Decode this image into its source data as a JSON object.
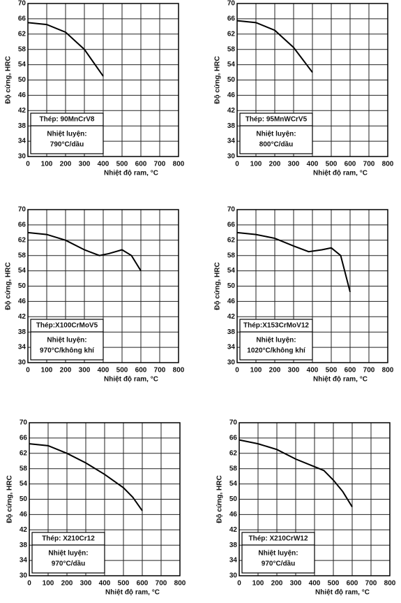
{
  "chart_data": [
    {
      "type": "line",
      "ylabel": "Độ cứng, HRC",
      "xlabel": "Nhiệt độ ram, °C",
      "annotations": [
        "Thép: 90MnCrV8",
        "Nhiệt luyện:",
        "790°C/dầu"
      ],
      "x": [
        0,
        100,
        200,
        300,
        400
      ],
      "values": [
        65,
        64.5,
        62.5,
        58,
        51
      ],
      "color": "#000000",
      "xlim": [
        0,
        800
      ],
      "ylim": [
        30,
        70
      ],
      "xticks": [
        0,
        100,
        200,
        300,
        400,
        500,
        600,
        700,
        800
      ],
      "yticks": [
        30,
        34,
        38,
        42,
        46,
        50,
        54,
        58,
        62,
        66,
        70
      ],
      "grid": true
    },
    {
      "type": "line",
      "ylabel": "Độ cứng, HRC",
      "xlabel": "Nhiệt độ ram, °C",
      "annotations": [
        "Thép: 95MnWCrV5",
        "Nhiệt luyện:",
        "800°C/dầu"
      ],
      "x": [
        0,
        100,
        200,
        300,
        400
      ],
      "values": [
        65.5,
        65,
        63,
        58.5,
        52
      ],
      "color": "#000000",
      "xlim": [
        0,
        800
      ],
      "ylim": [
        30,
        70
      ],
      "xticks": [
        0,
        100,
        200,
        300,
        400,
        500,
        600,
        700,
        800
      ],
      "yticks": [
        30,
        34,
        38,
        42,
        46,
        50,
        54,
        58,
        62,
        66,
        70
      ],
      "grid": true
    },
    {
      "type": "line",
      "ylabel": "Độ cứng, HRC",
      "xlabel": "Nhiệt độ ram, °C",
      "annotations": [
        "Thép:X100CrMoV5",
        "Nhiệt luyện:",
        "970°C/không khí"
      ],
      "x": [
        0,
        100,
        200,
        300,
        380,
        430,
        500,
        550,
        600
      ],
      "values": [
        64,
        63.5,
        62,
        59.5,
        58,
        58.5,
        59.5,
        58,
        54
      ],
      "color": "#000000",
      "xlim": [
        0,
        800
      ],
      "ylim": [
        30,
        70
      ],
      "xticks": [
        0,
        100,
        200,
        300,
        400,
        500,
        600,
        700,
        800
      ],
      "yticks": [
        30,
        34,
        38,
        42,
        46,
        50,
        54,
        58,
        62,
        66,
        70
      ],
      "grid": true
    },
    {
      "type": "line",
      "ylabel": "Độ cứng, HRC",
      "xlabel": "Nhiệt độ ram, °C",
      "annotations": [
        "Thép:X153CrMoV12",
        "Nhiệt luyện:",
        "1020°C/không khí"
      ],
      "x": [
        0,
        100,
        200,
        300,
        380,
        450,
        500,
        550,
        600
      ],
      "values": [
        64,
        63.5,
        62.5,
        60.5,
        59,
        59.5,
        60,
        58,
        48.5
      ],
      "color": "#000000",
      "xlim": [
        0,
        800
      ],
      "ylim": [
        30,
        70
      ],
      "xticks": [
        0,
        100,
        200,
        300,
        400,
        500,
        600,
        700,
        800
      ],
      "yticks": [
        30,
        34,
        38,
        42,
        46,
        50,
        54,
        58,
        62,
        66,
        70
      ],
      "grid": true
    },
    {
      "type": "line",
      "ylabel": "Độ cứng, HRC",
      "xlabel": "Nhiệt độ ram, °C",
      "annotations": [
        "Thép: X210Cr12",
        "Nhiệt luyện:",
        "970°C/dầu"
      ],
      "x": [
        0,
        100,
        200,
        300,
        400,
        500,
        550,
        600
      ],
      "values": [
        64.5,
        64,
        62,
        59.5,
        56.5,
        53,
        50.5,
        47
      ],
      "color": "#000000",
      "xlim": [
        0,
        800
      ],
      "ylim": [
        30,
        70
      ],
      "xticks": [
        0,
        100,
        200,
        300,
        400,
        500,
        600,
        700,
        800
      ],
      "yticks": [
        30,
        34,
        38,
        42,
        46,
        50,
        54,
        58,
        62,
        66,
        70
      ],
      "grid": true
    },
    {
      "type": "line",
      "ylabel": "Độ cứng, HRC",
      "xlabel": "Nhiệt độ ram, °C",
      "annotations": [
        "Thép: X210CrW12",
        "Nhiệt luyện:",
        "970°C/dầu"
      ],
      "x": [
        0,
        100,
        200,
        300,
        400,
        450,
        500,
        550,
        600
      ],
      "values": [
        65.5,
        64.5,
        63,
        60.5,
        58.5,
        57.5,
        55,
        52,
        48
      ],
      "color": "#000000",
      "xlim": [
        0,
        800
      ],
      "ylim": [
        30,
        70
      ],
      "xticks": [
        0,
        100,
        200,
        300,
        400,
        500,
        600,
        700,
        800
      ],
      "yticks": [
        30,
        34,
        38,
        42,
        46,
        50,
        54,
        58,
        62,
        66,
        70
      ],
      "grid": true
    }
  ]
}
